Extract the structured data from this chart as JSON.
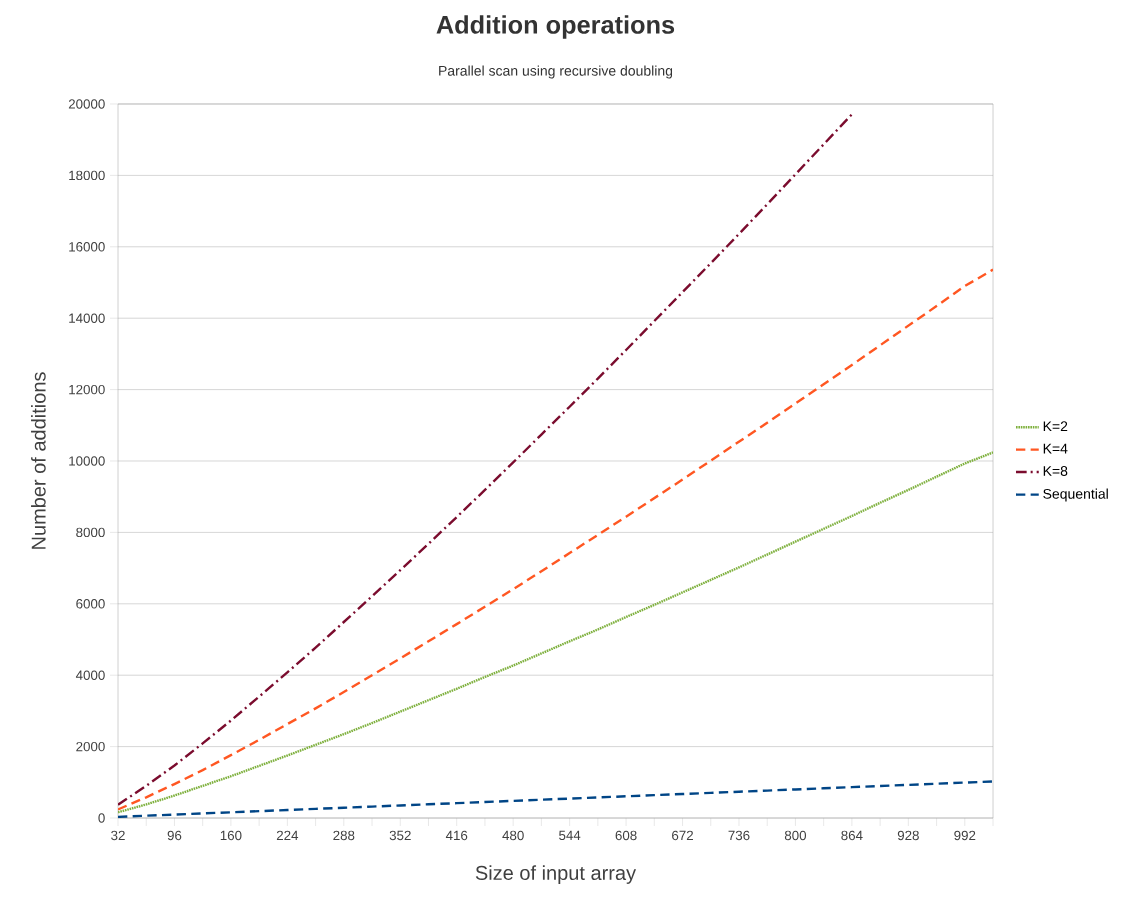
{
  "chart_data": {
    "type": "line",
    "title": "Addition operations",
    "subtitle": "Parallel scan using recursive doubling",
    "xlabel": "Size of input array",
    "ylabel": "Number of additions",
    "x": [
      32,
      64,
      96,
      128,
      160,
      192,
      224,
      256,
      288,
      320,
      352,
      384,
      416,
      448,
      480,
      512,
      544,
      576,
      608,
      640,
      672,
      704,
      736,
      768,
      800,
      832,
      864,
      896,
      928,
      960,
      992,
      1024
    ],
    "series": [
      {
        "name": "K=2",
        "color": "#7eb03d",
        "line_style": "dotted",
        "values": [
          160,
          380,
          630,
          900,
          1170,
          1460,
          1750,
          2050,
          2350,
          2660,
          2980,
          3300,
          3620,
          3950,
          4270,
          4610,
          4950,
          5280,
          5630,
          5970,
          6320,
          6670,
          7020,
          7380,
          7740,
          8100,
          8460,
          8830,
          9190,
          9560,
          9930,
          10240
        ]
      },
      {
        "name": "K=4",
        "color": "#ff5722",
        "line_style": "dashed",
        "values": [
          240,
          580,
          950,
          1340,
          1760,
          2190,
          2630,
          3070,
          3530,
          4000,
          4470,
          4950,
          5430,
          5920,
          6410,
          6910,
          7420,
          7930,
          8440,
          8960,
          9480,
          10010,
          10540,
          11070,
          11610,
          12150,
          12690,
          13240,
          13790,
          14340,
          14900,
          15360
        ]
      },
      {
        "name": "K=8",
        "color": "#7b0c2e",
        "line_style": "dashdot",
        "values": [
          370,
          900,
          1470,
          2090,
          2730,
          3400,
          4080,
          4770,
          5490,
          6210,
          6940,
          7680,
          8430,
          9190,
          9960,
          10740,
          11520,
          12310,
          13110,
          13920,
          14730,
          15540,
          16360,
          17190,
          18030,
          18870,
          19710,
          null,
          null,
          null,
          null,
          null
        ]
      },
      {
        "name": "Sequential",
        "color": "#004586",
        "line_style": "dashed",
        "values": [
          32,
          64,
          96,
          128,
          160,
          192,
          224,
          256,
          288,
          320,
          352,
          384,
          416,
          448,
          480,
          512,
          544,
          576,
          608,
          640,
          672,
          704,
          736,
          768,
          800,
          832,
          864,
          896,
          928,
          960,
          992,
          1024
        ]
      }
    ],
    "xlim": [
      32,
      1024
    ],
    "xticks": [
      32,
      {
        "value": 64,
        "label": null
      },
      96,
      {
        "value": 128,
        "label": null
      },
      160,
      {
        "value": 192,
        "label": null
      },
      224,
      {
        "value": 256,
        "label": null
      },
      288,
      {
        "value": 320,
        "label": null
      },
      352,
      {
        "value": 384,
        "label": null
      },
      416,
      {
        "value": 448,
        "label": null
      },
      480,
      {
        "value": 512,
        "label": null
      },
      544,
      {
        "value": 576,
        "label": null
      },
      608,
      {
        "value": 640,
        "label": null
      },
      672,
      {
        "value": 704,
        "label": null
      },
      736,
      {
        "value": 768,
        "label": null
      },
      800,
      {
        "value": 832,
        "label": null
      },
      864,
      {
        "value": 896,
        "label": null
      },
      928,
      {
        "value": 960,
        "label": null
      },
      992,
      {
        "value": 1024,
        "label": null
      }
    ],
    "ylim": [
      0,
      20000
    ],
    "yticks": [
      0,
      2000,
      4000,
      6000,
      8000,
      10000,
      12000,
      14000,
      16000,
      18000,
      20000
    ],
    "grid": "y",
    "legend": "right",
    "marker": "none"
  }
}
